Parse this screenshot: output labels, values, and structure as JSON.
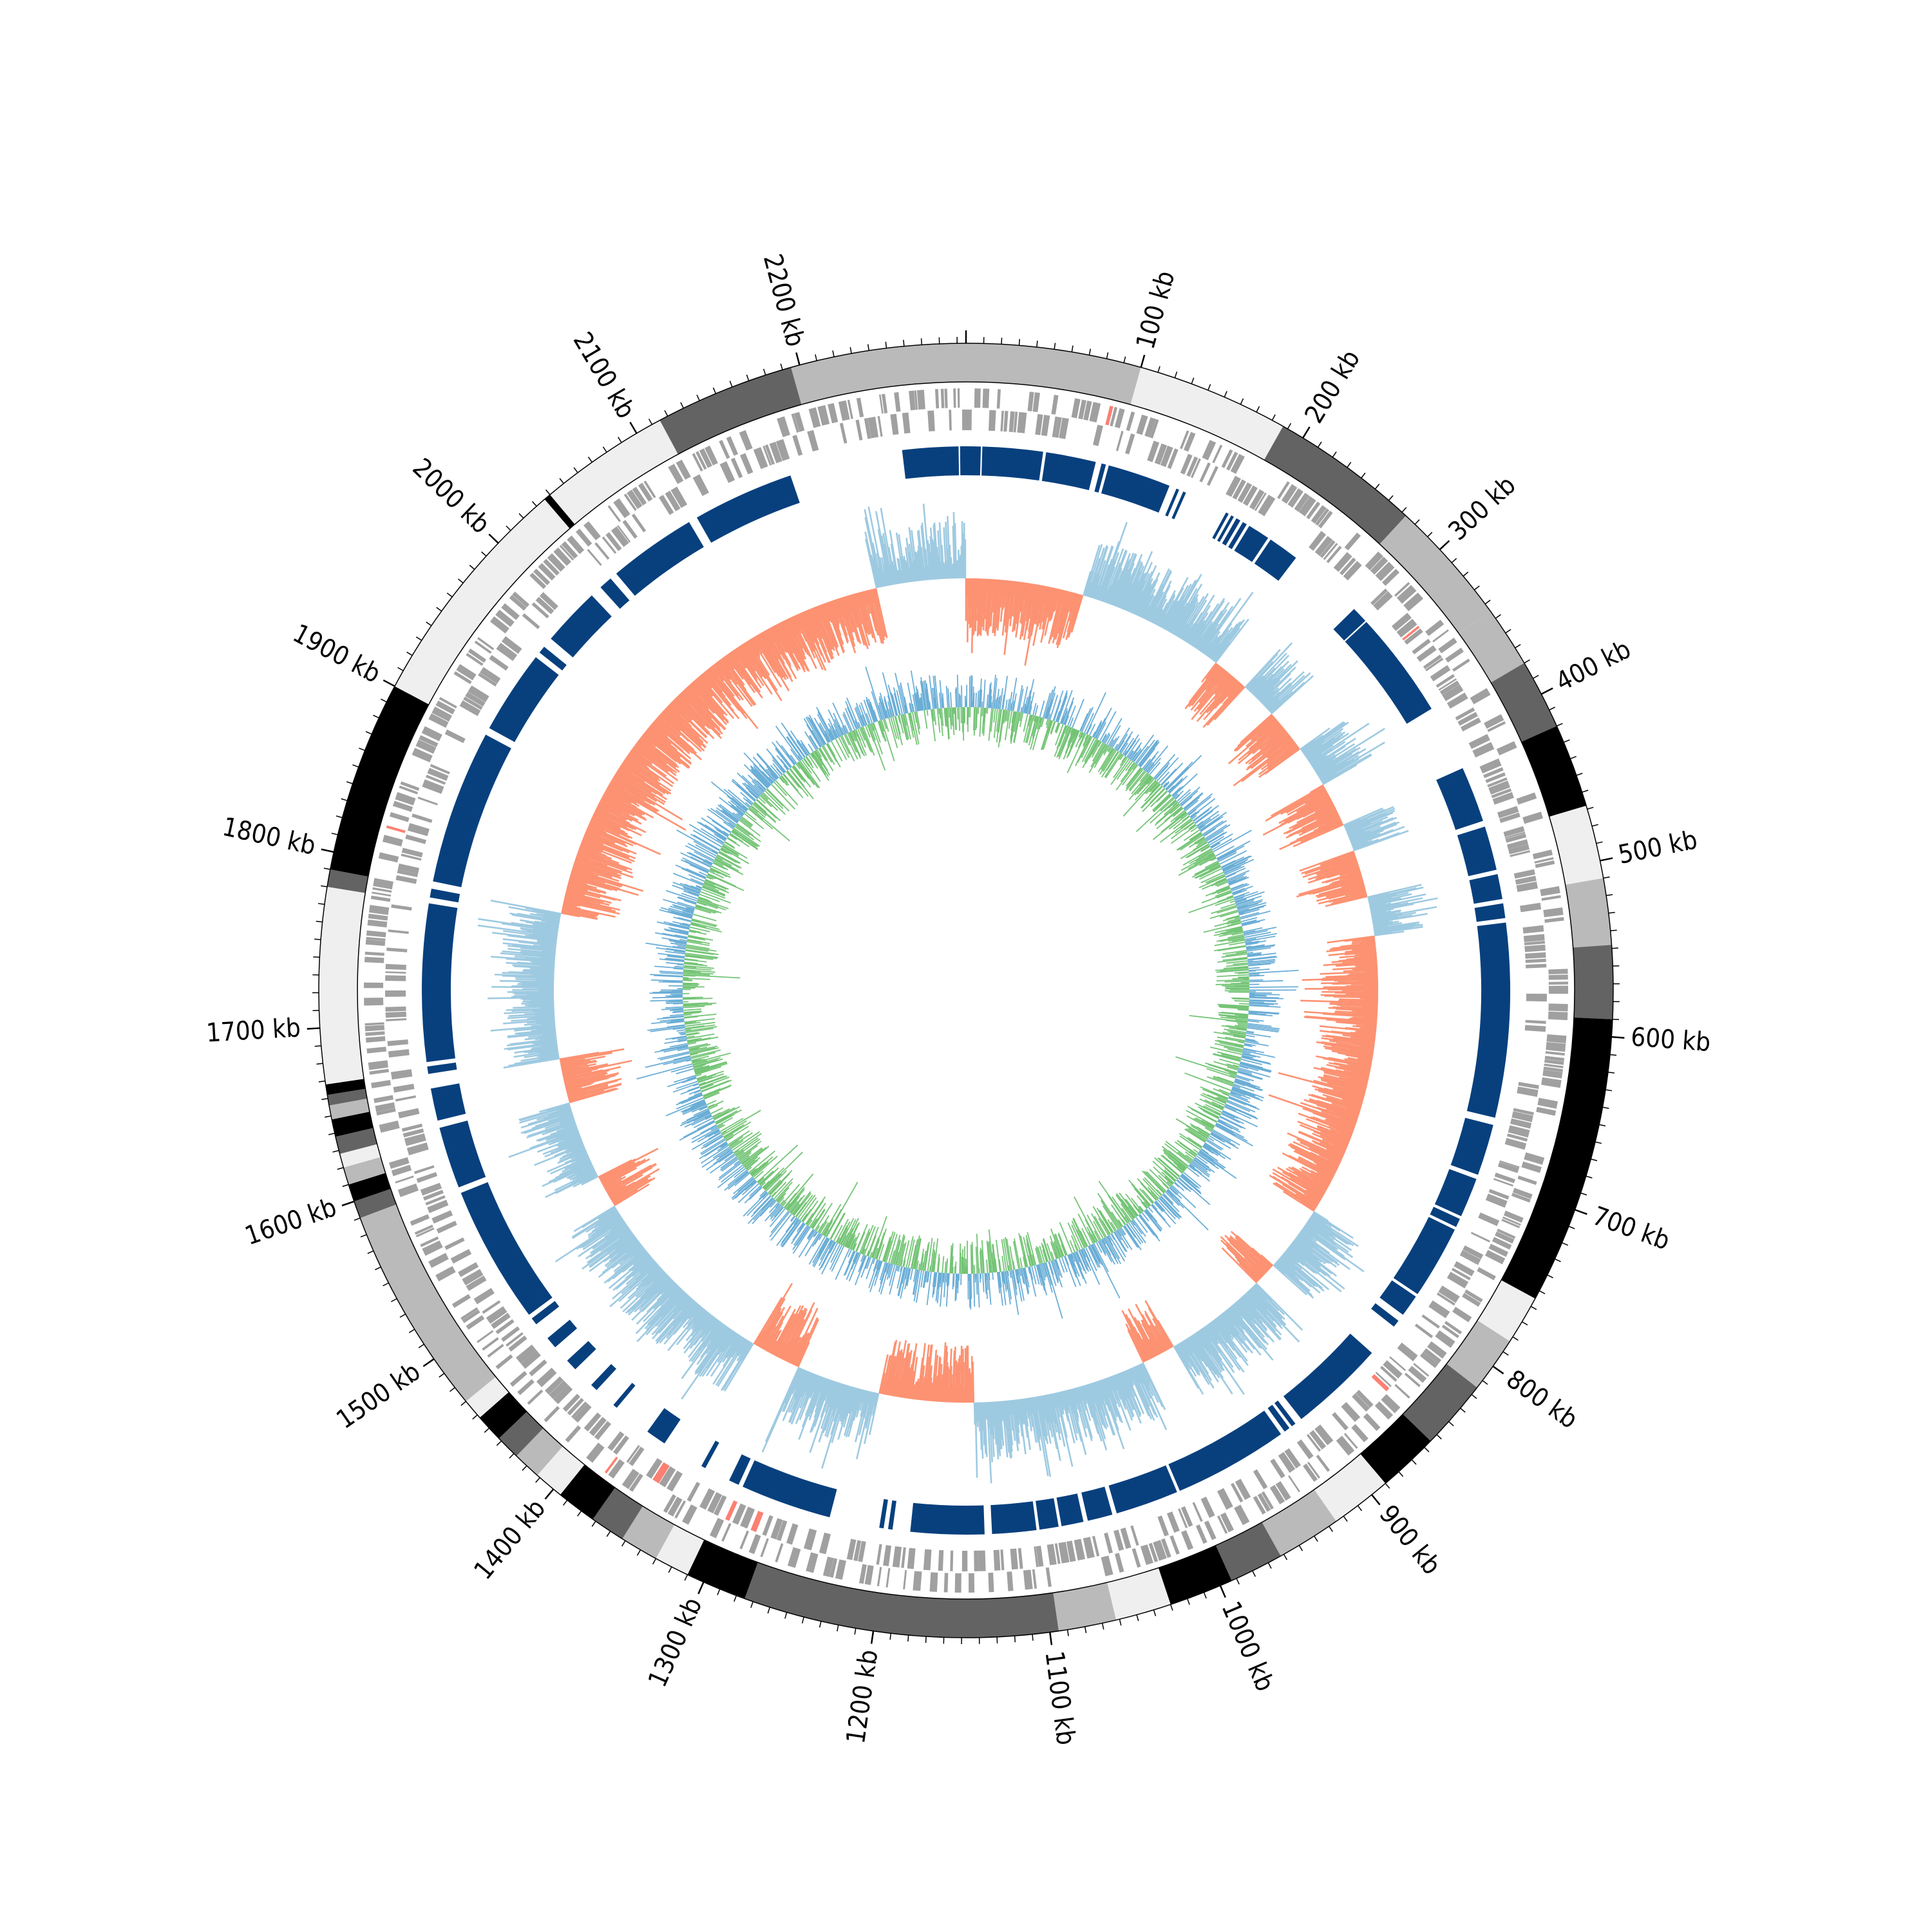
{
  "chart_data": {
    "type": "circular-genome",
    "genome_length_kb": 2295,
    "tick_labels": [
      {
        "kb": 100,
        "label": "100 kb"
      },
      {
        "kb": 200,
        "label": "200 kb"
      },
      {
        "kb": 300,
        "label": "300 kb"
      },
      {
        "kb": 400,
        "label": "400 kb"
      },
      {
        "kb": 500,
        "label": "500 kb"
      },
      {
        "kb": 600,
        "label": "600 kb"
      },
      {
        "kb": 700,
        "label": "700 kb"
      },
      {
        "kb": 800,
        "label": "800 kb"
      },
      {
        "kb": 900,
        "label": "900 kb"
      },
      {
        "kb": 1000,
        "label": "1000 kb"
      },
      {
        "kb": 1100,
        "label": "1100 kb"
      },
      {
        "kb": 1200,
        "label": "1200 kb"
      },
      {
        "kb": 1300,
        "label": "1300 kb"
      },
      {
        "kb": 1400,
        "label": "1400 kb"
      },
      {
        "kb": 1500,
        "label": "1500 kb"
      },
      {
        "kb": 1600,
        "label": "1600 kb"
      },
      {
        "kb": 1700,
        "label": "1700 kb"
      },
      {
        "kb": 1800,
        "label": "1800 kb"
      },
      {
        "kb": 1900,
        "label": "1900 kb"
      },
      {
        "kb": 2000,
        "label": "2000 kb"
      },
      {
        "kb": 2100,
        "label": "2100 kb"
      },
      {
        "kb": 2200,
        "label": "2200 kb"
      }
    ],
    "minor_tick_kb": 10,
    "ideogram_bands": [
      {
        "start": 0,
        "end": 100,
        "shade": "#bababa"
      },
      {
        "start": 100,
        "end": 187,
        "shade": "#efefef"
      },
      {
        "start": 187,
        "end": 273,
        "shade": "#636363"
      },
      {
        "start": 273,
        "end": 345,
        "shade": "#bababa"
      },
      {
        "start": 345,
        "end": 380,
        "shade": "#bababa"
      },
      {
        "start": 380,
        "end": 420,
        "shade": "#636363"
      },
      {
        "start": 420,
        "end": 468,
        "shade": "#000000"
      },
      {
        "start": 468,
        "end": 510,
        "shade": "#efefef"
      },
      {
        "start": 510,
        "end": 548,
        "shade": "#bababa"
      },
      {
        "start": 548,
        "end": 590,
        "shade": "#636363"
      },
      {
        "start": 590,
        "end": 755,
        "shade": "#000000"
      },
      {
        "start": 755,
        "end": 783,
        "shade": "#efefef"
      },
      {
        "start": 783,
        "end": 815,
        "shade": "#bababa"
      },
      {
        "start": 815,
        "end": 855,
        "shade": "#636363"
      },
      {
        "start": 855,
        "end": 890,
        "shade": "#000000"
      },
      {
        "start": 890,
        "end": 925,
        "shade": "#efefef"
      },
      {
        "start": 925,
        "end": 962,
        "shade": "#bababa"
      },
      {
        "start": 962,
        "end": 993,
        "shade": "#636363"
      },
      {
        "start": 993,
        "end": 1030,
        "shade": "#000000"
      },
      {
        "start": 1030,
        "end": 1062,
        "shade": "#efefef"
      },
      {
        "start": 1062,
        "end": 1095,
        "shade": "#bababa"
      },
      {
        "start": 1095,
        "end": 1275,
        "shade": "#636363"
      },
      {
        "start": 1275,
        "end": 1310,
        "shade": "#000000"
      },
      {
        "start": 1310,
        "end": 1330,
        "shade": "#efefef"
      },
      {
        "start": 1330,
        "end": 1352,
        "shade": "#bababa"
      },
      {
        "start": 1352,
        "end": 1372,
        "shade": "#636363"
      },
      {
        "start": 1372,
        "end": 1395,
        "shade": "#000000"
      },
      {
        "start": 1395,
        "end": 1412,
        "shade": "#efefef"
      },
      {
        "start": 1412,
        "end": 1428,
        "shade": "#bababa"
      },
      {
        "start": 1428,
        "end": 1442,
        "shade": "#636363"
      },
      {
        "start": 1442,
        "end": 1458,
        "shade": "#000000"
      },
      {
        "start": 1458,
        "end": 1470,
        "shade": "#efefef"
      },
      {
        "start": 1470,
        "end": 1590,
        "shade": "#bababa"
      },
      {
        "start": 1590,
        "end": 1600,
        "shade": "#636363"
      },
      {
        "start": 1600,
        "end": 1610,
        "shade": "#000000"
      },
      {
        "start": 1610,
        "end": 1620,
        "shade": "#bababa"
      },
      {
        "start": 1620,
        "end": 1628,
        "shade": "#efefef"
      },
      {
        "start": 1628,
        "end": 1638,
        "shade": "#636363"
      },
      {
        "start": 1638,
        "end": 1648,
        "shade": "#000000"
      },
      {
        "start": 1648,
        "end": 1656,
        "shade": "#bababa"
      },
      {
        "start": 1656,
        "end": 1662,
        "shade": "#636363"
      },
      {
        "start": 1662,
        "end": 1668,
        "shade": "#000000"
      },
      {
        "start": 1668,
        "end": 1780,
        "shade": "#efefef"
      },
      {
        "start": 1780,
        "end": 1790,
        "shade": "#636363"
      },
      {
        "start": 1790,
        "end": 1900,
        "shade": "#000000"
      },
      {
        "start": 1900,
        "end": 2036,
        "shade": "#efefef"
      },
      {
        "start": 2036,
        "end": 2040,
        "shade": "#000000"
      },
      {
        "start": 2040,
        "end": 2115,
        "shade": "#efefef"
      },
      {
        "start": 2115,
        "end": 2195,
        "shade": "#636363"
      },
      {
        "start": 2195,
        "end": 2295,
        "shade": "#bababa"
      }
    ],
    "gc_skew_polarity_segments": [
      {
        "start": 0,
        "end": 105,
        "sign": "negative"
      },
      {
        "start": 105,
        "end": 238,
        "sign": "positive"
      },
      {
        "start": 238,
        "end": 272,
        "sign": "negative"
      },
      {
        "start": 272,
        "end": 305,
        "sign": "positive"
      },
      {
        "start": 305,
        "end": 345,
        "sign": "negative"
      },
      {
        "start": 345,
        "end": 383,
        "sign": "positive"
      },
      {
        "start": 383,
        "end": 423,
        "sign": "negative"
      },
      {
        "start": 423,
        "end": 448,
        "sign": "positive"
      },
      {
        "start": 448,
        "end": 490,
        "sign": "negative"
      },
      {
        "start": 490,
        "end": 525,
        "sign": "positive"
      },
      {
        "start": 525,
        "end": 560,
        "sign": "negative"
      },
      {
        "start": 560,
        "end": 780,
        "sign": "negative"
      },
      {
        "start": 780,
        "end": 840,
        "sign": "positive"
      },
      {
        "start": 840,
        "end": 862,
        "sign": "negative"
      },
      {
        "start": 862,
        "end": 955,
        "sign": "positive"
      },
      {
        "start": 955,
        "end": 985,
        "sign": "negative"
      },
      {
        "start": 985,
        "end": 1140,
        "sign": "positive"
      },
      {
        "start": 1140,
        "end": 1225,
        "sign": "negative"
      },
      {
        "start": 1225,
        "end": 1300,
        "sign": "positive"
      },
      {
        "start": 1300,
        "end": 1345,
        "sign": "negative"
      },
      {
        "start": 1345,
        "end": 1520,
        "sign": "positive"
      },
      {
        "start": 1520,
        "end": 1550,
        "sign": "negative"
      },
      {
        "start": 1550,
        "end": 1620,
        "sign": "positive"
      },
      {
        "start": 1620,
        "end": 1660,
        "sign": "negative"
      },
      {
        "start": 1660,
        "end": 1790,
        "sign": "positive"
      },
      {
        "start": 1790,
        "end": 2215,
        "sign": "negative"
      },
      {
        "start": 2215,
        "end": 2240,
        "sign": "positive"
      },
      {
        "start": 2240,
        "end": 2295,
        "sign": "positive"
      }
    ],
    "gc_skew_colors": {
      "positive": "#9ecae1",
      "negative": "#fc9272"
    },
    "gc_content_colors": {
      "positive": "#74c476",
      "negative": "#6baed6"
    },
    "gene_track_color": "#a0a0a0",
    "gene_track_accent_color": "#fb8072",
    "synteny_block_color": "#08407e",
    "synteny_blocks": [
      {
        "start": 2252,
        "end": 2290
      },
      {
        "start": 2291,
        "end": 2295
      },
      {
        "start": 0,
        "end": 10
      },
      {
        "start": 11,
        "end": 52
      },
      {
        "start": 54,
        "end": 88
      },
      {
        "start": 92,
        "end": 95
      },
      {
        "start": 97,
        "end": 140
      },
      {
        "start": 145,
        "end": 147
      },
      {
        "start": 150,
        "end": 152
      },
      {
        "start": 182,
        "end": 184
      },
      {
        "start": 186,
        "end": 188
      },
      {
        "start": 190,
        "end": 193
      },
      {
        "start": 195,
        "end": 198
      },
      {
        "start": 200,
        "end": 215
      },
      {
        "start": 217,
        "end": 238
      },
      {
        "start": 290,
        "end": 301
      },
      {
        "start": 302,
        "end": 375
      },
      {
        "start": 420,
        "end": 458
      },
      {
        "start": 462,
        "end": 492
      },
      {
        "start": 495,
        "end": 512
      },
      {
        "start": 515,
        "end": 525
      },
      {
        "start": 528,
        "end": 660
      },
      {
        "start": 665,
        "end": 700
      },
      {
        "start": 703,
        "end": 730
      },
      {
        "start": 732,
        "end": 738
      },
      {
        "start": 740,
        "end": 790
      },
      {
        "start": 792,
        "end": 807
      },
      {
        "start": 812,
        "end": 817
      },
      {
        "start": 840,
        "end": 905
      },
      {
        "start": 910,
        "end": 913
      },
      {
        "start": 915,
        "end": 919
      },
      {
        "start": 922,
        "end": 1000
      },
      {
        "start": 1002,
        "end": 1045
      },
      {
        "start": 1048,
        "end": 1065
      },
      {
        "start": 1068,
        "end": 1083
      },
      {
        "start": 1085,
        "end": 1098
      },
      {
        "start": 1100,
        "end": 1130
      },
      {
        "start": 1135,
        "end": 1185
      },
      {
        "start": 1197,
        "end": 1200
      },
      {
        "start": 1203,
        "end": 1206
      },
      {
        "start": 1240,
        "end": 1302
      },
      {
        "start": 1305,
        "end": 1312
      },
      {
        "start": 1330,
        "end": 1333
      },
      {
        "start": 1362,
        "end": 1376
      },
      {
        "start": 1402,
        "end": 1405
      },
      {
        "start": 1420,
        "end": 1425
      },
      {
        "start": 1440,
        "end": 1448
      },
      {
        "start": 1460,
        "end": 1468
      },
      {
        "start": 1480,
        "end": 1485
      },
      {
        "start": 1488,
        "end": 1582
      },
      {
        "start": 1586,
        "end": 1628
      },
      {
        "start": 1633,
        "end": 1655
      },
      {
        "start": 1665,
        "end": 1670
      },
      {
        "start": 1673,
        "end": 1780
      },
      {
        "start": 1784,
        "end": 1790
      },
      {
        "start": 1795,
        "end": 1900
      },
      {
        "start": 1905,
        "end": 1962
      },
      {
        "start": 1966,
        "end": 1971
      },
      {
        "start": 1978,
        "end": 2018
      },
      {
        "start": 2026,
        "end": 2035
      },
      {
        "start": 2040,
        "end": 2100
      },
      {
        "start": 2106,
        "end": 2175
      }
    ]
  }
}
